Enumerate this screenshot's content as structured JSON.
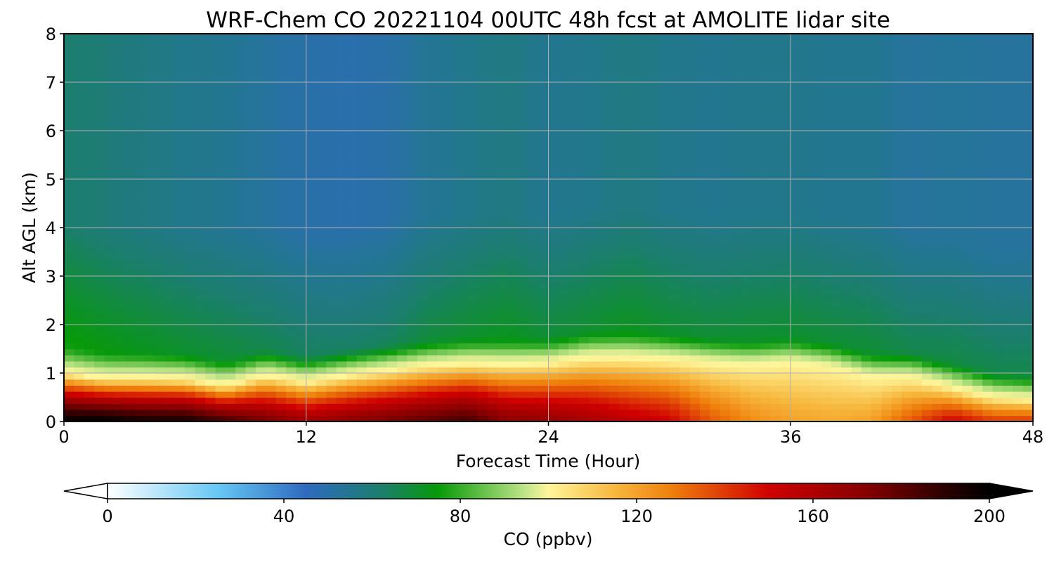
{
  "chart_data": {
    "type": "heatmap",
    "title": "WRF-Chem CO  20221104 00UTC 48h fcst at AMOLITE lidar site",
    "xlabel": "Forecast Time (Hour)",
    "ylabel": "Alt AGL (km)",
    "xlim": [
      0,
      48
    ],
    "ylim": [
      0,
      8
    ],
    "xticks": [
      "0",
      "12",
      "24",
      "36",
      "48"
    ],
    "yticks": [
      "0",
      "1",
      "2",
      "3",
      "4",
      "5",
      "6",
      "7",
      "8"
    ],
    "grid": true,
    "x": [
      0,
      2,
      4,
      6,
      8,
      10,
      12,
      14,
      16,
      18,
      20,
      22,
      24,
      26,
      28,
      30,
      32,
      34,
      36,
      38,
      40,
      42,
      44,
      46,
      48
    ],
    "boundary_layer_top_km": [
      1.0,
      0.9,
      0.9,
      0.88,
      0.75,
      0.95,
      0.82,
      0.95,
      1.05,
      1.15,
      1.2,
      1.18,
      1.2,
      1.32,
      1.32,
      1.28,
      1.2,
      1.15,
      1.2,
      1.1,
      0.9,
      0.9,
      0.7,
      0.5,
      0.45
    ],
    "surface_co_ppbv": [
      200,
      200,
      195,
      195,
      185,
      175,
      165,
      170,
      175,
      180,
      185,
      170,
      168,
      162,
      155,
      150,
      135,
      125,
      120,
      118,
      120,
      135,
      150,
      140,
      140
    ],
    "free_troposphere_co_ppbv": [
      62,
      60,
      58,
      56,
      55,
      52,
      50,
      49,
      50,
      54,
      56,
      58,
      55,
      56,
      58,
      56,
      55,
      56,
      56,
      55,
      55,
      52,
      53,
      52,
      52
    ],
    "colorbar": {
      "label": "CO  (ppbv)",
      "ticks": [
        "0",
        "40",
        "80",
        "120",
        "160",
        "200"
      ],
      "vmin": 0,
      "vmax": 200,
      "extend": "both",
      "stops": [
        {
          "v": 0,
          "c": "#ffffff"
        },
        {
          "v": 25,
          "c": "#66c8f5"
        },
        {
          "v": 45,
          "c": "#2e6bc0"
        },
        {
          "v": 62,
          "c": "#1b7e6e"
        },
        {
          "v": 75,
          "c": "#069a08"
        },
        {
          "v": 95,
          "c": "#c2e68a"
        },
        {
          "v": 100,
          "c": "#fff59a"
        },
        {
          "v": 115,
          "c": "#f7b83e"
        },
        {
          "v": 128,
          "c": "#ef7f0b"
        },
        {
          "v": 150,
          "c": "#d00000"
        },
        {
          "v": 172,
          "c": "#860000"
        },
        {
          "v": 190,
          "c": "#2a0000"
        },
        {
          "v": 200,
          "c": "#000000"
        }
      ]
    }
  }
}
